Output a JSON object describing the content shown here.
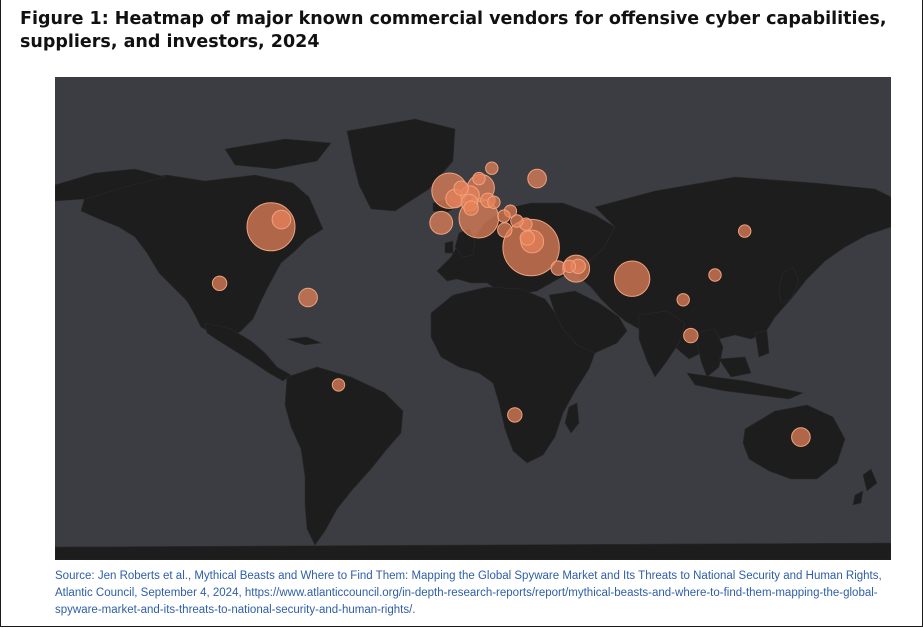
{
  "figure": {
    "title": "Figure 1: Heatmap of major known commercial vendors for offensive cyber capabilities, suppliers, and investors, 2024",
    "source": "Source: Jen Roberts et al., Mythical Beasts and Where to Find Them: Mapping the Global Spyware Market and Its Threats to National Security and Human Rights, Atlantic Council, September 4, 2024, https://www.atlanticcouncil.org/in-depth-research-reports/report/mythical-beasts-and-where-to-find-them-mapping-the-global-spyware-market-and-its-threats-to-national-security-and-human-rights/."
  },
  "colors": {
    "ocean": "#3b3d42",
    "land": "#1d1d1d",
    "bubble_fill": "#e8825a",
    "bubble_stroke": "#f0a27e",
    "source_text": "#2e5ea8"
  },
  "chart_data": {
    "type": "bubble-map",
    "encoding": "bubble size = relative count of vendors, suppliers and investors",
    "points": [
      {
        "lat": 39.0,
        "lon": -77.0,
        "size": 10
      },
      {
        "lat": 41.5,
        "lon": -72.5,
        "size": 3
      },
      {
        "lat": 19.4,
        "lon": -99.1,
        "size": 2
      },
      {
        "lat": 14.5,
        "lon": -61.0,
        "size": 3
      },
      {
        "lat": -15.8,
        "lon": -47.9,
        "size": 1.5
      },
      {
        "lat": 51.5,
        "lon": -0.1,
        "size": 7
      },
      {
        "lat": 48.8,
        "lon": 2.3,
        "size": 3
      },
      {
        "lat": 40.4,
        "lon": -3.7,
        "size": 4
      },
      {
        "lat": 52.5,
        "lon": 13.4,
        "size": 5
      },
      {
        "lat": 50.0,
        "lon": 8.7,
        "size": 3
      },
      {
        "lat": 48.2,
        "lon": 16.4,
        "size": 2
      },
      {
        "lat": 47.4,
        "lon": 8.5,
        "size": 2.5
      },
      {
        "lat": 52.4,
        "lon": 4.9,
        "size": 2
      },
      {
        "lat": 55.7,
        "lon": 12.6,
        "size": 1.5
      },
      {
        "lat": 59.3,
        "lon": 18.1,
        "size": 1.5
      },
      {
        "lat": 42.0,
        "lon": 12.5,
        "size": 8
      },
      {
        "lat": 45.5,
        "lon": 9.2,
        "size": 2
      },
      {
        "lat": 47.5,
        "lon": 19.0,
        "size": 1.5
      },
      {
        "lat": 44.4,
        "lon": 26.1,
        "size": 1.5
      },
      {
        "lat": 42.7,
        "lon": 23.3,
        "size": 1.5
      },
      {
        "lat": 37.9,
        "lon": 23.7,
        "size": 2
      },
      {
        "lat": 39.9,
        "lon": 32.8,
        "size": 1.5
      },
      {
        "lat": 41.0,
        "lon": 28.9,
        "size": 1.5
      },
      {
        "lat": 55.7,
        "lon": 37.6,
        "size": 3
      },
      {
        "lat": 31.8,
        "lon": 35.0,
        "size": 12
      },
      {
        "lat": 33.9,
        "lon": 35.5,
        "size": 4
      },
      {
        "lat": 35.1,
        "lon": 33.4,
        "size": 2
      },
      {
        "lat": 24.5,
        "lon": 54.4,
        "size": 5
      },
      {
        "lat": 25.3,
        "lon": 55.3,
        "size": 2
      },
      {
        "lat": 24.7,
        "lon": 46.7,
        "size": 2
      },
      {
        "lat": 25.3,
        "lon": 51.5,
        "size": 1.5
      },
      {
        "lat": 21.0,
        "lon": 78.5,
        "size": 7
      },
      {
        "lat": 13.7,
        "lon": 100.5,
        "size": 1.5
      },
      {
        "lat": 22.3,
        "lon": 114.2,
        "size": 1.5
      },
      {
        "lat": 37.5,
        "lon": 127.0,
        "size": 1.5
      },
      {
        "lat": 1.3,
        "lon": 103.8,
        "size": 2
      },
      {
        "lat": -26.2,
        "lon": 28.0,
        "size": 2
      },
      {
        "lat": -33.9,
        "lon": 151.2,
        "size": 3
      }
    ]
  }
}
